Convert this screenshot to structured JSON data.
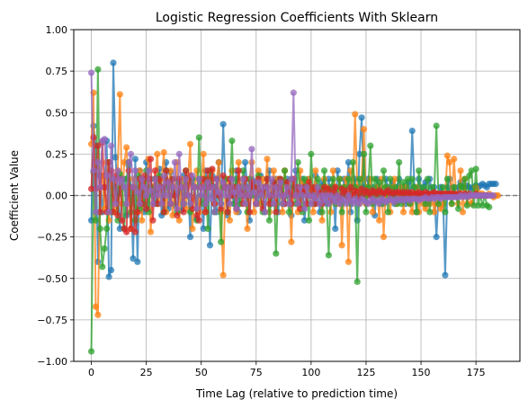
{
  "chart_data": {
    "type": "line",
    "title": "Logistic Regression Coefficients With Sklearn",
    "xlabel": "Time Lag (relative to prediction time)",
    "ylabel": "Coefficient Value",
    "xlim": [
      -8,
      195
    ],
    "ylim": [
      -1.0,
      1.0
    ],
    "xticks": [
      0,
      25,
      50,
      75,
      100,
      125,
      150,
      175
    ],
    "xtick_labels": [
      "0",
      "25",
      "50",
      "75",
      "100",
      "125",
      "150",
      "175"
    ],
    "yticks": [
      -1.0,
      -0.75,
      -0.5,
      -0.25,
      0.0,
      0.25,
      0.5,
      0.75,
      1.0
    ],
    "ytick_labels": [
      "−1.00",
      "−0.75",
      "−0.50",
      "−0.25",
      "0.00",
      "0.25",
      "0.50",
      "0.75",
      "1.00"
    ],
    "grid": true,
    "legend": "none",
    "reference_line": {
      "y": 0,
      "color": "#808080",
      "style": "dashed"
    },
    "series": [
      {
        "color": "#1f77b4",
        "values": [
          -0.15,
          0.42,
          0.3,
          -0.4,
          0.12,
          -0.1,
          0.05,
          0.33,
          -0.49,
          -0.45,
          0.8,
          0.23,
          0.02,
          -0.2,
          0.05,
          0.1,
          -0.12,
          0.18,
          0.05,
          -0.38,
          0.22,
          -0.4,
          0.15,
          0.06,
          -0.1,
          0.2,
          -0.08,
          0.1,
          0.02,
          -0.05,
          0.1,
          0.16,
          -0.12,
          0.05,
          0.2,
          -0.08,
          0.14,
          0.05,
          -0.06,
          0.1,
          0.02,
          -0.09,
          0.12,
          0.0,
          0.08,
          -0.25,
          0.1,
          0.05,
          -0.14,
          0.1,
          0.0,
          -0.2,
          0.15,
          0.05,
          -0.3,
          0.12,
          0.05,
          -0.1,
          0.2,
          -0.05,
          0.43,
          0.05,
          -0.12,
          0.1,
          0.0,
          -0.05,
          0.15,
          -0.1,
          0.05,
          0.0,
          0.2,
          0.05,
          -0.15,
          0.1,
          0.0,
          0.08,
          -0.05,
          0.12,
          0.03,
          -0.1,
          0.05,
          0.15,
          -0.05,
          0.05,
          0.1,
          -0.1,
          0.02,
          0.08,
          -0.05,
          0.1,
          0.05,
          -0.12,
          0.0,
          0.15,
          -0.05,
          0.05,
          0.1,
          -0.15,
          0.0,
          0.1,
          0.05,
          -0.05,
          0.12,
          0.0,
          -0.1,
          0.08,
          0.05,
          -0.05,
          0.1,
          0.0,
          0.05,
          -0.2,
          0.15,
          0.05,
          -0.05,
          0.1,
          0.0,
          0.2,
          -0.1,
          0.05,
          0.1,
          -0.15,
          0.25,
          0.47,
          0.05,
          -0.05,
          0.1,
          0.0,
          0.05,
          -0.12,
          0.1,
          0.05,
          0.0,
          -0.05,
          0.1,
          0.05,
          0.0,
          0.08,
          -0.05,
          0.05,
          0.1,
          0.0,
          0.05,
          -0.05,
          0.08,
          0.0,
          0.39,
          0.05,
          -0.1,
          0.1,
          0.0,
          0.05,
          0.08,
          -0.05,
          0.1,
          0.0,
          0.05,
          -0.25,
          0.0,
          0.05,
          0.0,
          -0.48,
          0.05,
          0.1,
          0.03,
          0.05,
          0.0,
          0.05,
          0.08,
          0.05,
          0.0,
          0.06,
          0.05,
          0.04,
          0.05,
          0.06,
          0.05,
          0.06,
          0.07,
          0.06,
          0.05,
          0.07,
          0.07,
          0.07,
          0.07
        ]
      },
      {
        "color": "#ff7f0e",
        "values": [
          0.31,
          0.62,
          -0.67,
          -0.72,
          0.05,
          0.12,
          -0.08,
          0.2,
          -0.15,
          0.1,
          0.05,
          -0.1,
          0.15,
          0.61,
          -0.05,
          0.2,
          0.29,
          0.05,
          -0.2,
          0.1,
          0.05,
          -0.1,
          0.15,
          -0.15,
          0.1,
          0.05,
          0.22,
          -0.22,
          0.05,
          0.1,
          0.25,
          -0.05,
          0.1,
          0.26,
          -0.1,
          0.05,
          0.15,
          -0.12,
          0.05,
          0.2,
          -0.15,
          0.1,
          0.05,
          -0.08,
          0.1,
          0.31,
          -0.2,
          0.05,
          0.15,
          -0.1,
          0.05,
          0.25,
          -0.1,
          0.1,
          0.05,
          0.15,
          -0.05,
          0.1,
          0.2,
          -0.1,
          -0.48,
          0.05,
          0.1,
          -0.15,
          0.15,
          0.05,
          -0.1,
          0.2,
          0.0,
          0.1,
          0.05,
          -0.2,
          0.1,
          0.2,
          -0.1,
          0.05,
          0.15,
          -0.05,
          0.1,
          0.0,
          0.22,
          -0.1,
          0.05,
          0.15,
          -0.05,
          0.1,
          0.05,
          -0.1,
          0.15,
          0.0,
          0.05,
          -0.28,
          0.1,
          0.05,
          -0.1,
          0.15,
          0.0,
          0.08,
          -0.05,
          0.1,
          0.05,
          -0.1,
          0.15,
          0.0,
          0.05,
          -0.15,
          0.1,
          0.05,
          0.0,
          -0.1,
          0.15,
          0.05,
          -0.05,
          0.1,
          -0.3,
          0.05,
          0.1,
          -0.4,
          0.15,
          0.0,
          0.49,
          0.05,
          -0.05,
          0.1,
          0.4,
          -0.05,
          0.05,
          0.1,
          -0.1,
          0.0,
          0.05,
          -0.15,
          0.1,
          -0.25,
          0.05,
          0.0,
          -0.1,
          0.05,
          0.1,
          -0.05,
          0.0,
          0.05,
          -0.1,
          0.05,
          0.0,
          -0.05,
          -0.1,
          0.0,
          0.05,
          -0.1,
          0.0,
          -0.05,
          -0.08,
          0.0,
          -0.05,
          0.0,
          -0.1,
          -0.05,
          0.0,
          -0.08,
          -0.05,
          0.0,
          0.24,
          0.2,
          -0.05,
          0.22,
          0.0,
          -0.05,
          0.15,
          -0.1,
          0.1,
          -0.05,
          0.0,
          -0.05,
          0.0,
          0.05,
          0.02,
          0.0,
          0.01,
          0.0,
          0.0,
          0.01,
          0.0,
          -0.01,
          0.0,
          0.0
        ]
      },
      {
        "color": "#2ca02c",
        "values": [
          -0.94,
          0.14,
          -0.15,
          0.76,
          -0.2,
          -0.43,
          -0.32,
          -0.2,
          0.2,
          -0.1,
          0.1,
          0.05,
          -0.15,
          0.13,
          0.1,
          -0.2,
          0.1,
          0.2,
          -0.1,
          0.05,
          -0.15,
          0.12,
          -0.08,
          0.1,
          -0.05,
          0.15,
          -0.1,
          0.05,
          0.0,
          0.1,
          -0.05,
          0.12,
          0.05,
          -0.1,
          0.15,
          0.05,
          -0.05,
          0.1,
          0.0,
          -0.1,
          0.08,
          0.05,
          -0.05,
          0.15,
          0.0,
          -0.1,
          0.1,
          0.05,
          -0.15,
          0.35,
          0.0,
          -0.05,
          0.1,
          -0.2,
          0.15,
          0.05,
          -0.1,
          0.1,
          0.0,
          -0.28,
          0.05,
          0.1,
          -0.1,
          0.05,
          0.33,
          -0.05,
          0.1,
          0.0,
          -0.05,
          0.15,
          0.05,
          -0.1,
          0.1,
          0.0,
          0.05,
          -0.05,
          0.12,
          0.0,
          -0.1,
          0.05,
          0.1,
          -0.15,
          0.0,
          0.08,
          -0.35,
          0.05,
          0.1,
          -0.05,
          0.15,
          0.0,
          -0.1,
          0.1,
          0.05,
          -0.05,
          0.2,
          0.0,
          -0.1,
          0.1,
          0.05,
          -0.15,
          0.25,
          0.0,
          -0.05,
          0.1,
          0.05,
          -0.1,
          0.15,
          0.0,
          -0.36,
          0.05,
          0.1,
          -0.05,
          0.0,
          0.1,
          -0.1,
          0.05,
          0.0,
          0.1,
          -0.05,
          0.2,
          0.05,
          -0.52,
          0.1,
          0.0,
          0.25,
          -0.1,
          0.05,
          0.3,
          -0.05,
          0.1,
          0.0,
          0.08,
          -0.05,
          0.15,
          0.05,
          -0.1,
          0.1,
          0.0,
          0.05,
          -0.05,
          0.2,
          -0.05,
          0.08,
          0.0,
          0.1,
          -0.05,
          0.1,
          0.05,
          -0.1,
          0.15,
          0.0,
          0.05,
          -0.05,
          0.1,
          -0.1,
          0.05,
          0.0,
          0.42,
          -0.05,
          0.0,
          0.05,
          -0.1,
          0.1,
          0.0,
          -0.05,
          0.05,
          0.0,
          -0.08,
          0.06,
          0.05,
          0.1,
          -0.06,
          0.12,
          0.15,
          -0.06,
          0.16,
          -0.06,
          0.0,
          -0.06,
          0.0,
          -0.06,
          -0.07
        ]
      },
      {
        "color": "#d62728",
        "values": [
          0.04,
          0.35,
          0.04,
          0.3,
          -0.1,
          0.32,
          0.05,
          -0.1,
          0.2,
          0.15,
          -0.1,
          0.12,
          -0.12,
          0.1,
          -0.15,
          -0.2,
          -0.22,
          0.15,
          -0.2,
          0.05,
          -0.22,
          -0.1,
          0.1,
          -0.05,
          0.12,
          -0.08,
          0.1,
          0.22,
          -0.15,
          0.15,
          -0.05,
          0.1,
          0.05,
          -0.1,
          0.15,
          0.08,
          -0.05,
          0.1,
          0.0,
          -0.12,
          0.1,
          0.05,
          -0.1,
          0.15,
          0.0,
          0.12,
          -0.08,
          0.05,
          -0.12,
          -0.15,
          0.05,
          0.1,
          -0.1,
          0.15,
          0.05,
          0.16,
          -0.05,
          0.1,
          0.0,
          -0.08,
          0.12,
          0.05,
          -0.1,
          0.1,
          0.0,
          0.05,
          -0.08,
          0.15,
          0.02,
          -0.05,
          0.1,
          0.0,
          -0.1,
          0.08,
          0.05,
          -0.05,
          0.1,
          0.02,
          -0.08,
          0.05,
          0.1,
          -0.05,
          0.0,
          0.08,
          -0.1,
          0.05,
          0.1,
          0.0,
          -0.05,
          0.08,
          0.02,
          -0.05,
          0.1,
          0.0,
          0.05,
          -0.08,
          0.02,
          0.05,
          -0.05,
          0.08,
          0.0,
          0.05,
          -0.05,
          0.03,
          0.02,
          -0.05,
          0.05,
          0.0,
          0.04,
          -0.03,
          0.02,
          0.05,
          0.0,
          -0.02,
          0.04,
          0.01,
          0.03,
          -0.02,
          0.05,
          0.0,
          0.03,
          0.02,
          -0.02,
          0.04,
          0.01,
          0.03,
          0.02,
          0.0,
          0.03,
          0.02,
          0.01,
          0.03,
          0.02,
          0.01,
          0.02,
          0.03,
          0.01,
          0.02,
          0.01,
          0.02,
          0.02,
          0.01,
          0.02,
          0.01,
          0.02,
          0.01,
          0.02,
          0.01,
          0.01,
          0.02,
          0.01,
          0.01,
          0.02,
          0.01,
          0.01,
          0.01,
          0.02,
          0.01,
          0.01,
          0.01,
          0.01,
          0.01,
          0.01,
          0.01,
          0.01,
          0.01,
          0.0,
          0.01,
          0.01,
          0.0,
          0.01,
          0.0,
          0.01,
          0.0,
          0.0,
          0.01,
          0.0,
          0.0,
          0.0,
          0.0,
          0.0
        ]
      },
      {
        "color": "#9467bd",
        "values": [
          0.74,
          0.15,
          -0.1,
          0.2,
          0.05,
          0.33,
          0.34,
          0.12,
          -0.1,
          0.3,
          0.1,
          -0.05,
          0.15,
          0.08,
          0.1,
          0.05,
          -0.05,
          0.2,
          0.25,
          0.05,
          0.15,
          0.02,
          -0.05,
          0.1,
          0.05,
          0.0,
          0.15,
          0.03,
          -0.05,
          0.1,
          0.0,
          0.05,
          -0.05,
          0.12,
          0.0,
          0.08,
          -0.05,
          0.05,
          0.2,
          -0.08,
          0.25,
          0.05,
          -0.05,
          0.1,
          0.0,
          -0.05,
          0.12,
          0.05,
          -0.08,
          0.1,
          0.0,
          0.05,
          -0.05,
          0.08,
          -0.02,
          0.05,
          -0.1,
          0.1,
          0.02,
          -0.05,
          0.08,
          0.0,
          0.05,
          -0.05,
          0.1,
          0.02,
          -0.08,
          0.05,
          0.0,
          0.1,
          -0.05,
          0.05,
          0.0,
          0.28,
          0.02,
          -0.05,
          0.08,
          0.0,
          0.05,
          -0.1,
          0.05,
          0.0,
          0.1,
          -0.05,
          0.05,
          0.0,
          0.08,
          -0.05,
          0.0,
          0.05,
          -0.05,
          0.1,
          0.62,
          0.0,
          -0.05,
          0.05,
          0.0,
          -0.08,
          0.05,
          0.0,
          -0.05,
          0.0,
          -0.02,
          0.05,
          -0.05,
          0.0,
          -0.03,
          0.0,
          -0.05,
          0.0,
          -0.02,
          -0.04,
          0.0,
          -0.05,
          -0.02,
          -0.03,
          -0.05,
          0.0,
          -0.03,
          -0.05,
          -0.02,
          -0.04,
          -0.05,
          -0.02,
          -0.03,
          -0.04,
          -0.05,
          -0.03,
          -0.02,
          -0.04,
          -0.03,
          -0.05,
          -0.02,
          -0.03,
          -0.04,
          -0.03,
          -0.02,
          -0.03,
          -0.04,
          -0.02,
          -0.03,
          -0.02,
          -0.03,
          -0.02,
          -0.02,
          -0.03,
          -0.02,
          -0.02,
          -0.02,
          -0.03,
          -0.02,
          -0.02,
          -0.01,
          -0.02,
          -0.02,
          -0.01,
          -0.02,
          -0.01,
          -0.01,
          -0.02,
          -0.01,
          -0.01,
          -0.01,
          -0.01,
          -0.01,
          -0.01,
          -0.01,
          -0.01,
          0.0,
          -0.01,
          0.0,
          -0.01,
          0.0,
          0.0,
          0.0,
          0.0,
          0.0,
          0.0,
          0.0,
          0.0,
          0.0,
          0.0,
          0.0,
          0.0
        ]
      }
    ]
  }
}
